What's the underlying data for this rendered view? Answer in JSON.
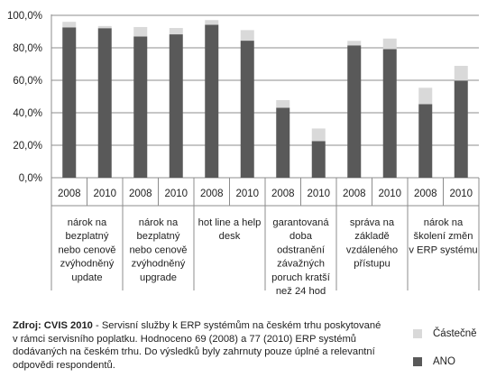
{
  "chart_data": {
    "type": "bar",
    "stacked": true,
    "y_axis": {
      "min": 0,
      "max": 100,
      "step": 20,
      "tick_labels": [
        "0,0%",
        "20,0%",
        "40,0%",
        "60,0%",
        "80,0%",
        "100,0%"
      ]
    },
    "x": [
      "2008",
      "2010",
      "2008",
      "2010",
      "2008",
      "2010",
      "2008",
      "2010",
      "2008",
      "2010",
      "2008",
      "2010"
    ],
    "groups": [
      {
        "label": "nárok na bezplatný nebo cenově zvýhodněný update",
        "lines": [
          "nárok na",
          "bezplatný",
          "nebo cenově",
          "zvýhodněný",
          "update"
        ]
      },
      {
        "label": "nárok na bezplatný nebo cenově zvýhodněný upgrade",
        "lines": [
          "nárok na",
          "bezplatný",
          "nebo cenově",
          "zvýhodněný",
          "upgrade"
        ]
      },
      {
        "label": "hot line a help desk",
        "lines": [
          "hot line a help",
          "desk"
        ]
      },
      {
        "label": "garantovaná doba odstranění závažných poruch kratší než 24 hod",
        "lines": [
          "garantovaná",
          "doba",
          "odstranění",
          "závažných",
          "poruch kratší",
          "než 24 hod"
        ]
      },
      {
        "label": "správa na základě vzdáleného přístupu",
        "lines": [
          "správa na",
          "základě",
          "vzdáleného",
          "přístupu"
        ]
      },
      {
        "label": "nárok na školení změn v ERP systému",
        "lines": [
          "nárok na",
          "školení změn",
          "v ERP systému"
        ]
      }
    ],
    "series": [
      {
        "name": "ANO",
        "color": "#595959",
        "values": [
          92.6,
          92.1,
          87.0,
          88.3,
          94.2,
          84.4,
          43.1,
          22.5,
          81.5,
          79.2,
          45.3,
          59.8
        ]
      },
      {
        "name": "Částečně",
        "color": "#d9d9d9",
        "values": [
          3.4,
          1.3,
          5.8,
          3.9,
          2.9,
          6.5,
          4.7,
          7.8,
          2.8,
          6.5,
          10.1,
          9.1
        ]
      }
    ],
    "grid": true
  },
  "legend": {
    "items": [
      {
        "label": "Částečně",
        "color": "#d9d9d9"
      },
      {
        "label": "ANO",
        "color": "#595959"
      }
    ]
  },
  "source": {
    "bold": "Zdroj: CVIS 2010",
    "text": " - Servisní služby k ERP systémům na českém trhu poskytované v rámci servisního poplatku. Hodnoceno 69 (2008) a 77 (2010) ERP systémů dodávaných na českém trhu. Do výsledků byly zahrnuty pouze úplné a relevantní odpovědi respondentů."
  }
}
